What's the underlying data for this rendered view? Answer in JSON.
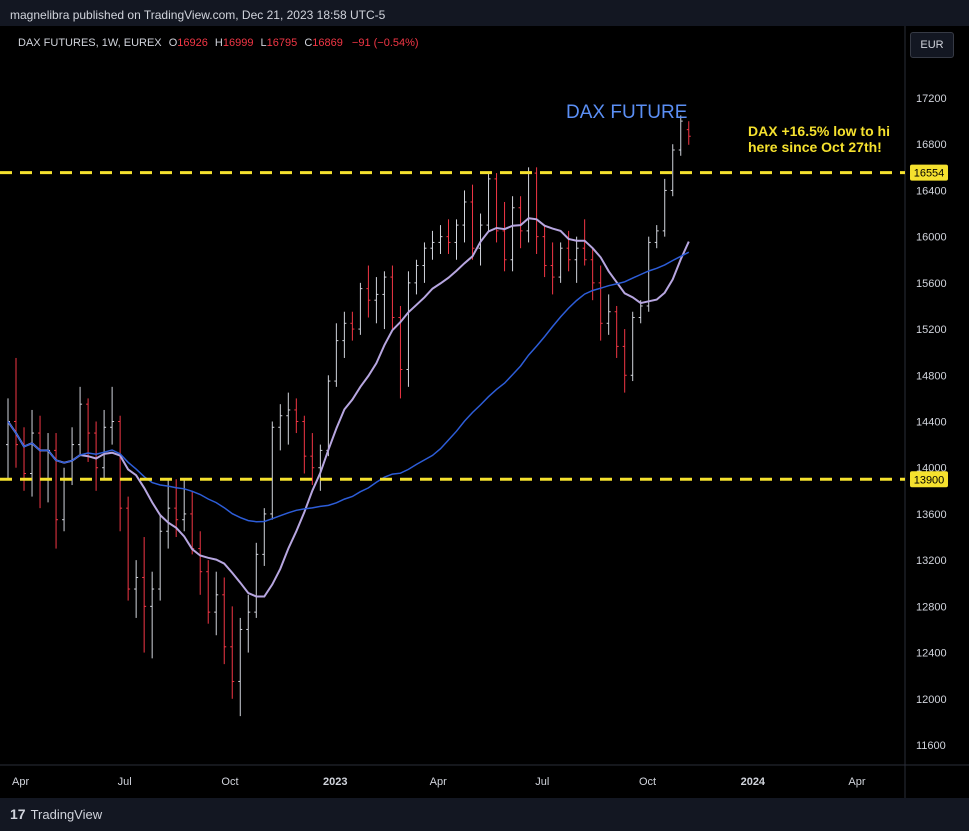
{
  "header": {
    "publisher": "magnelibra published on TradingView.com, Dec 21, 2023 18:58 UTC-5"
  },
  "legend": {
    "symbol": "DAX FUTURES, 1W, EUREX",
    "o_label": "O",
    "o": "16926",
    "h_label": "H",
    "h": "16999",
    "l_label": "L",
    "l": "16795",
    "c_label": "C",
    "c": "16869",
    "change": "−91 (−0.54%)"
  },
  "currency_button": "EUR",
  "footer": {
    "brand": "TradingView",
    "logo_mark": "17"
  },
  "annotations": {
    "title": "DAX FUTURE",
    "note_line1": "DAX +16.5% low to hi",
    "note_line2": "here since Oct 27th!"
  },
  "colors": {
    "up": "#d1d4dc",
    "down": "#f23645",
    "ma_fast": "#b7a6e0",
    "ma_slow": "#2d5dd8",
    "hline": "#f5e12e",
    "note": "#f5e12e",
    "title": "#5b8ff5"
  },
  "chart_data": {
    "type": "ohlc",
    "interval": "1W",
    "ylim": [
      11400,
      17400
    ],
    "y_ticks": [
      "17200",
      "16800",
      "16400",
      "16000",
      "15600",
      "15200",
      "14800",
      "14400",
      "14000",
      "13600",
      "13200",
      "12800",
      "12400",
      "12000",
      "11600"
    ],
    "x_range": [
      "2022-03-21",
      "2024-05-13"
    ],
    "x_ticks": [
      {
        "date": "2022-04-01",
        "label": "Apr",
        "bold": false
      },
      {
        "date": "2022-07-01",
        "label": "Jul",
        "bold": false
      },
      {
        "date": "2022-10-01",
        "label": "Oct",
        "bold": false
      },
      {
        "date": "2023-01-01",
        "label": "2023",
        "bold": true
      },
      {
        "date": "2023-04-01",
        "label": "Apr",
        "bold": false
      },
      {
        "date": "2023-07-01",
        "label": "Jul",
        "bold": false
      },
      {
        "date": "2023-10-01",
        "label": "Oct",
        "bold": false
      },
      {
        "date": "2024-01-01",
        "label": "2024",
        "bold": true
      },
      {
        "date": "2024-04-01",
        "label": "Apr",
        "bold": false
      }
    ],
    "first_bar_date": "2022-03-21",
    "bars": [
      [
        14200,
        14600,
        13900,
        14400
      ],
      [
        14400,
        14950,
        14000,
        14200
      ],
      [
        14200,
        14350,
        13800,
        13950
      ],
      [
        13950,
        14500,
        13750,
        14300
      ],
      [
        14300,
        14450,
        13650,
        13900
      ],
      [
        13900,
        14300,
        13700,
        14150
      ],
      [
        14150,
        14300,
        13300,
        13550
      ],
      [
        13550,
        14000,
        13450,
        13900
      ],
      [
        13900,
        14350,
        13850,
        14200
      ],
      [
        14200,
        14700,
        14100,
        14550
      ],
      [
        14550,
        14600,
        14050,
        14300
      ],
      [
        14300,
        14400,
        13800,
        14000
      ],
      [
        14000,
        14500,
        13900,
        14350
      ],
      [
        14350,
        14700,
        14200,
        14400
      ],
      [
        14400,
        14450,
        13450,
        13650
      ],
      [
        13650,
        13750,
        12850,
        12950
      ],
      [
        12950,
        13200,
        12700,
        13050
      ],
      [
        13050,
        13400,
        12400,
        12800
      ],
      [
        12800,
        13100,
        12350,
        12950
      ],
      [
        12950,
        13600,
        12850,
        13450
      ],
      [
        13450,
        13900,
        13300,
        13650
      ],
      [
        13650,
        13900,
        13400,
        13550
      ],
      [
        13550,
        13900,
        13450,
        13600
      ],
      [
        13600,
        13800,
        13250,
        13300
      ],
      [
        13300,
        13450,
        12900,
        13100
      ],
      [
        13100,
        13200,
        12650,
        12750
      ],
      [
        12750,
        13100,
        12550,
        12900
      ],
      [
        12900,
        13050,
        12300,
        12450
      ],
      [
        12450,
        12800,
        12000,
        12150
      ],
      [
        12150,
        12700,
        11850,
        12600
      ],
      [
        12600,
        12900,
        12400,
        12750
      ],
      [
        12750,
        13350,
        12700,
        13250
      ],
      [
        13250,
        13650,
        13150,
        13600
      ],
      [
        13600,
        14400,
        13550,
        14350
      ],
      [
        14350,
        14550,
        14150,
        14450
      ],
      [
        14450,
        14650,
        14200,
        14500
      ],
      [
        14500,
        14600,
        14300,
        14400
      ],
      [
        14400,
        14450,
        13950,
        14100
      ],
      [
        14100,
        14300,
        13850,
        14000
      ],
      [
        14000,
        14200,
        13800,
        14150
      ],
      [
        14150,
        14800,
        14100,
        14750
      ],
      [
        14750,
        15250,
        14700,
        15100
      ],
      [
        15100,
        15350,
        14950,
        15250
      ],
      [
        15250,
        15350,
        15100,
        15200
      ],
      [
        15200,
        15600,
        15150,
        15550
      ],
      [
        15550,
        15750,
        15300,
        15450
      ],
      [
        15450,
        15650,
        15250,
        15500
      ],
      [
        15500,
        15700,
        15200,
        15650
      ],
      [
        15650,
        15750,
        15200,
        15300
      ],
      [
        15300,
        15400,
        14600,
        14850
      ],
      [
        14850,
        15700,
        14700,
        15600
      ],
      [
        15600,
        15800,
        15500,
        15750
      ],
      [
        15750,
        15950,
        15600,
        15900
      ],
      [
        15900,
        16050,
        15800,
        15950
      ],
      [
        15950,
        16100,
        15850,
        16000
      ],
      [
        16000,
        16150,
        15850,
        15950
      ],
      [
        15950,
        16150,
        15800,
        16100
      ],
      [
        16100,
        16400,
        15950,
        16300
      ],
      [
        16300,
        16450,
        15800,
        15900
      ],
      [
        15900,
        16200,
        15750,
        16100
      ],
      [
        16100,
        16550,
        16050,
        16500
      ],
      [
        16500,
        16550,
        15950,
        16050
      ],
      [
        16050,
        16300,
        15700,
        15800
      ],
      [
        15800,
        16350,
        15700,
        16250
      ],
      [
        16250,
        16350,
        15900,
        16050
      ],
      [
        16050,
        16600,
        15950,
        16550
      ],
      [
        16550,
        16600,
        15850,
        16000
      ],
      [
        16000,
        16100,
        15650,
        15750
      ],
      [
        15750,
        15950,
        15500,
        15650
      ],
      [
        15650,
        15950,
        15600,
        15900
      ],
      [
        15900,
        16050,
        15700,
        15800
      ],
      [
        15800,
        16000,
        15600,
        15900
      ],
      [
        15900,
        16150,
        15750,
        15800
      ],
      [
        15800,
        15900,
        15450,
        15600
      ],
      [
        15600,
        15750,
        15100,
        15250
      ],
      [
        15250,
        15500,
        15150,
        15350
      ],
      [
        15350,
        15400,
        14950,
        15050
      ],
      [
        15050,
        15200,
        14650,
        14800
      ],
      [
        14800,
        15350,
        14750,
        15300
      ],
      [
        15300,
        15450,
        15250,
        15400
      ],
      [
        15400,
        16000,
        15350,
        15950
      ],
      [
        15950,
        16100,
        15900,
        16050
      ],
      [
        16050,
        16500,
        16000,
        16400
      ],
      [
        16400,
        16800,
        16350,
        16750
      ],
      [
        16750,
        17050,
        16700,
        17000
      ],
      [
        16926,
        16999,
        16795,
        16869
      ]
    ],
    "series": [
      {
        "name": "",
        "period": 10,
        "color": "#b7a6e0"
      },
      {
        "name": "",
        "period": 40,
        "color": "#2d5dd8"
      }
    ],
    "hlines": [
      {
        "value": 16554,
        "label": "16554"
      },
      {
        "value": 13900,
        "label": "13900"
      }
    ]
  }
}
